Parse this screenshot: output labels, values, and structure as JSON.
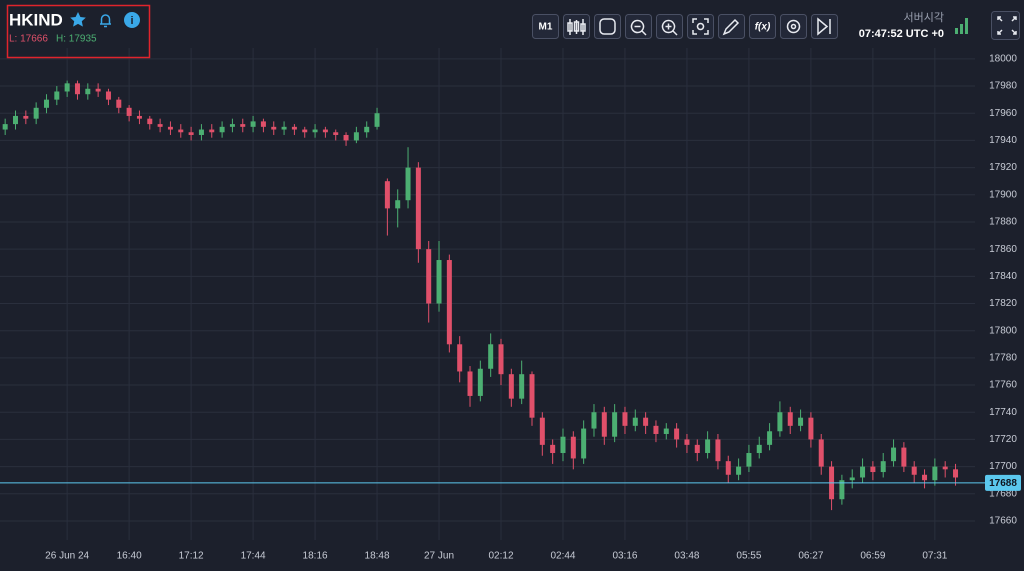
{
  "header": {
    "symbol": "HKIND",
    "low": "L: 17666",
    "high": "H: 17935",
    "timeframe": "M1",
    "function_button": "f(x)",
    "server_time_label": "서버시각",
    "server_time": "07:47:52 UTC +0"
  },
  "chart_data": {
    "type": "candlestick",
    "categories": [
      null,
      null,
      null,
      null,
      null,
      null,
      "26 Jun 24",
      null,
      null,
      null,
      null,
      null,
      "16:40",
      null,
      null,
      null,
      null,
      null,
      "17:12",
      null,
      null,
      null,
      null,
      null,
      "17:44",
      null,
      null,
      null,
      null,
      null,
      "18:16",
      null,
      null,
      null,
      null,
      null,
      "18:48",
      null,
      null,
      null,
      null,
      null,
      "27 Jun",
      null,
      null,
      null,
      null,
      null,
      "02:12",
      null,
      null,
      null,
      null,
      null,
      "02:44",
      null,
      null,
      null,
      null,
      null,
      "03:16",
      null,
      null,
      null,
      null,
      null,
      "03:48",
      null,
      null,
      null,
      null,
      null,
      "05:55",
      null,
      null,
      null,
      null,
      null,
      "06:27",
      null,
      null,
      null,
      null,
      null,
      "06:59",
      null,
      null,
      null,
      null,
      null,
      "07:31",
      null,
      null
    ],
    "ohlc": [
      [
        17948,
        17956,
        17944,
        17952
      ],
      [
        17952,
        17962,
        17948,
        17958
      ],
      [
        17958,
        17962,
        17952,
        17956
      ],
      [
        17956,
        17968,
        17952,
        17964
      ],
      [
        17964,
        17974,
        17960,
        17970
      ],
      [
        17970,
        17980,
        17966,
        17976
      ],
      [
        17976,
        17984,
        17972,
        17982
      ],
      [
        17982,
        17984,
        17970,
        17974
      ],
      [
        17974,
        17982,
        17970,
        17978
      ],
      [
        17978,
        17982,
        17972,
        17976
      ],
      [
        17976,
        17978,
        17966,
        17970
      ],
      [
        17970,
        17972,
        17960,
        17964
      ],
      [
        17964,
        17966,
        17954,
        17958
      ],
      [
        17958,
        17962,
        17952,
        17956
      ],
      [
        17956,
        17958,
        17948,
        17952
      ],
      [
        17952,
        17956,
        17946,
        17950
      ],
      [
        17950,
        17954,
        17944,
        17948
      ],
      [
        17948,
        17952,
        17942,
        17946
      ],
      [
        17946,
        17950,
        17940,
        17944
      ],
      [
        17944,
        17952,
        17940,
        17948
      ],
      [
        17948,
        17952,
        17942,
        17946
      ],
      [
        17946,
        17954,
        17942,
        17950
      ],
      [
        17950,
        17956,
        17946,
        17952
      ],
      [
        17952,
        17956,
        17946,
        17950
      ],
      [
        17950,
        17958,
        17946,
        17954
      ],
      [
        17954,
        17956,
        17946,
        17950
      ],
      [
        17950,
        17954,
        17944,
        17948
      ],
      [
        17948,
        17954,
        17944,
        17950
      ],
      [
        17950,
        17952,
        17944,
        17948
      ],
      [
        17948,
        17950,
        17942,
        17946
      ],
      [
        17946,
        17952,
        17942,
        17948
      ],
      [
        17948,
        17950,
        17942,
        17946
      ],
      [
        17946,
        17948,
        17940,
        17944
      ],
      [
        17944,
        17946,
        17936,
        17940
      ],
      [
        17940,
        17950,
        17938,
        17946
      ],
      [
        17946,
        17954,
        17942,
        17950
      ],
      [
        17950,
        17964,
        17948,
        17960
      ],
      [
        17910,
        17912,
        17870,
        17890
      ],
      [
        17890,
        17904,
        17876,
        17896
      ],
      [
        17896,
        17935,
        17890,
        17920
      ],
      [
        17920,
        17924,
        17850,
        17860
      ],
      [
        17860,
        17866,
        17806,
        17820
      ],
      [
        17820,
        17866,
        17814,
        17852
      ],
      [
        17852,
        17856,
        17784,
        17790
      ],
      [
        17790,
        17796,
        17762,
        17770
      ],
      [
        17770,
        17774,
        17744,
        17752
      ],
      [
        17752,
        17778,
        17748,
        17772
      ],
      [
        17772,
        17798,
        17766,
        17790
      ],
      [
        17790,
        17794,
        17760,
        17768
      ],
      [
        17768,
        17772,
        17744,
        17750
      ],
      [
        17750,
        17778,
        17746,
        17768
      ],
      [
        17768,
        17770,
        17730,
        17736
      ],
      [
        17736,
        17740,
        17708,
        17716
      ],
      [
        17716,
        17720,
        17702,
        17710
      ],
      [
        17710,
        17728,
        17704,
        17722
      ],
      [
        17722,
        17726,
        17698,
        17706
      ],
      [
        17706,
        17734,
        17702,
        17728
      ],
      [
        17728,
        17746,
        17722,
        17740
      ],
      [
        17740,
        17744,
        17716,
        17722
      ],
      [
        17722,
        17746,
        17718,
        17740
      ],
      [
        17740,
        17744,
        17724,
        17730
      ],
      [
        17730,
        17742,
        17726,
        17736
      ],
      [
        17736,
        17740,
        17724,
        17730
      ],
      [
        17730,
        17734,
        17718,
        17724
      ],
      [
        17724,
        17732,
        17720,
        17728
      ],
      [
        17728,
        17732,
        17714,
        17720
      ],
      [
        17720,
        17724,
        17710,
        17716
      ],
      [
        17716,
        17720,
        17704,
        17710
      ],
      [
        17710,
        17726,
        17706,
        17720
      ],
      [
        17720,
        17724,
        17698,
        17704
      ],
      [
        17704,
        17708,
        17688,
        17694
      ],
      [
        17694,
        17706,
        17690,
        17700
      ],
      [
        17700,
        17716,
        17696,
        17710
      ],
      [
        17710,
        17722,
        17706,
        17716
      ],
      [
        17716,
        17732,
        17712,
        17726
      ],
      [
        17726,
        17748,
        17722,
        17740
      ],
      [
        17740,
        17744,
        17724,
        17730
      ],
      [
        17730,
        17742,
        17726,
        17736
      ],
      [
        17736,
        17740,
        17714,
        17720
      ],
      [
        17720,
        17724,
        17694,
        17700
      ],
      [
        17700,
        17704,
        17668,
        17676
      ],
      [
        17676,
        17694,
        17672,
        17690
      ],
      [
        17690,
        17698,
        17684,
        17692
      ],
      [
        17692,
        17706,
        17688,
        17700
      ],
      [
        17700,
        17704,
        17690,
        17696
      ],
      [
        17696,
        17710,
        17692,
        17704
      ],
      [
        17704,
        17720,
        17700,
        17714
      ],
      [
        17714,
        17718,
        17696,
        17700
      ],
      [
        17700,
        17704,
        17688,
        17694
      ],
      [
        17694,
        17698,
        17684,
        17690
      ],
      [
        17690,
        17706,
        17686,
        17700
      ],
      [
        17700,
        17704,
        17692,
        17698
      ],
      [
        17698,
        17702,
        17686,
        17692
      ]
    ],
    "up_color": "#4caf72",
    "down_color": "#e0506a",
    "current_price": 17688,
    "current_price_color": "#5bc8ee",
    "ylim": [
      17646,
      18008
    ],
    "yticks": [
      17660,
      17680,
      17700,
      17720,
      17740,
      17760,
      17780,
      17800,
      17820,
      17840,
      17860,
      17880,
      17900,
      17920,
      17940,
      17960,
      17980,
      18000
    ],
    "grid": true
  }
}
